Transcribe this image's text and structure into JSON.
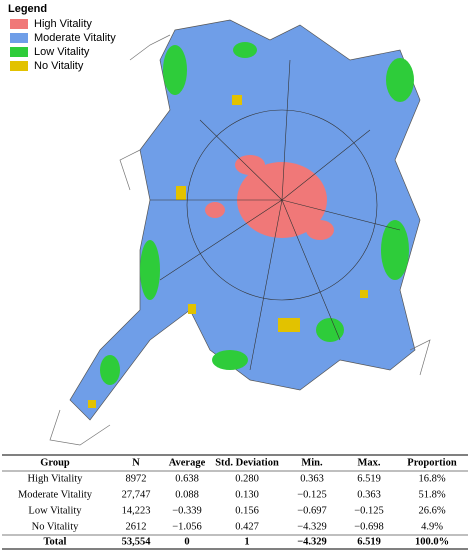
{
  "legend": {
    "title": "Legend",
    "items": [
      {
        "label": "High Vitality",
        "color": "#f07878"
      },
      {
        "label": "Moderate  Vitality",
        "color": "#6f9ee8"
      },
      {
        "label": "Low Vitality",
        "color": "#2ecc3a"
      },
      {
        "label": "No Vitality",
        "color": "#e2c200"
      }
    ]
  },
  "table": {
    "header": [
      "Group",
      "N",
      "Average",
      "Std. Deviation",
      "Min.",
      "Max.",
      "Proportion"
    ],
    "rows": [
      [
        "High Vitality",
        "8972",
        "0.638",
        "0.280",
        "0.363",
        "6.519",
        "16.8%"
      ],
      [
        "Moderate Vitality",
        "27,747",
        "0.088",
        "0.130",
        "−0.125",
        "0.363",
        "51.8%"
      ],
      [
        "Low Vitality",
        "14,223",
        "−0.339",
        "0.156",
        "−0.697",
        "−0.125",
        "26.6%"
      ],
      [
        "No Vitality",
        "2612",
        "−1.056",
        "0.427",
        "−4.329",
        "−0.698",
        "4.9%"
      ]
    ],
    "total": [
      "Total",
      "53,554",
      "0",
      "1",
      "−4.329",
      "6.519",
      "100.0%"
    ]
  }
}
